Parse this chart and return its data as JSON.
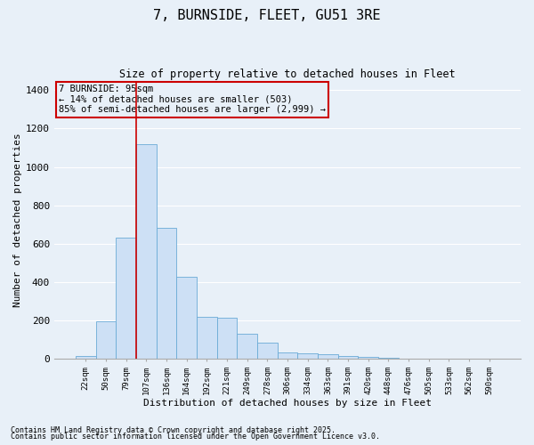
{
  "title": "7, BURNSIDE, FLEET, GU51 3RE",
  "subtitle": "Size of property relative to detached houses in Fleet",
  "xlabel": "Distribution of detached houses by size in Fleet",
  "ylabel": "Number of detached properties",
  "categories": [
    "22sqm",
    "50sqm",
    "79sqm",
    "107sqm",
    "136sqm",
    "164sqm",
    "192sqm",
    "221sqm",
    "249sqm",
    "278sqm",
    "306sqm",
    "334sqm",
    "363sqm",
    "391sqm",
    "420sqm",
    "448sqm",
    "476sqm",
    "505sqm",
    "533sqm",
    "562sqm",
    "590sqm"
  ],
  "values": [
    15,
    195,
    630,
    1120,
    685,
    430,
    220,
    215,
    130,
    85,
    35,
    30,
    25,
    15,
    10,
    5,
    3,
    2,
    1,
    1,
    1
  ],
  "bar_color": "#cde0f5",
  "bar_edge_color": "#6aabd6",
  "background_color": "#e8f0f8",
  "grid_color": "#ffffff",
  "annotation_box_text": "7 BURNSIDE: 95sqm\n← 14% of detached houses are smaller (503)\n85% of semi-detached houses are larger (2,999) →",
  "annotation_box_color": "#cc0000",
  "vline_x_index": 3.0,
  "ylim": [
    0,
    1450
  ],
  "yticks": [
    0,
    200,
    400,
    600,
    800,
    1000,
    1200,
    1400
  ],
  "footnote1": "Contains HM Land Registry data © Crown copyright and database right 2025.",
  "footnote2": "Contains public sector information licensed under the Open Government Licence v3.0."
}
